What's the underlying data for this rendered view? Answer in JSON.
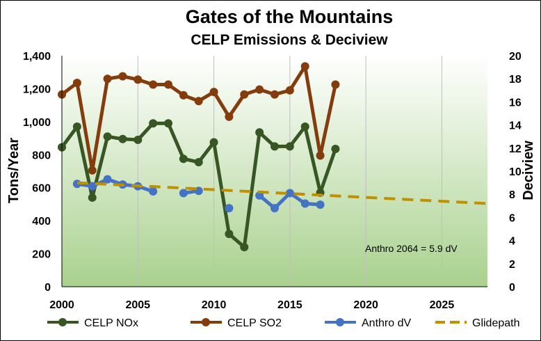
{
  "chart_data": {
    "type": "line",
    "title": "Gates of the Mountains",
    "subtitle": "CELP Emissions & Deciview",
    "ylabel": "Tons/Year",
    "y2label": "Deciview",
    "xlim": [
      2000,
      2028
    ],
    "ylim": [
      0,
      1400
    ],
    "y2lim": [
      0,
      20
    ],
    "xticks": [
      "2000",
      "2005",
      "2010",
      "2015",
      "2020",
      "2025"
    ],
    "yticks": [
      "0",
      "200",
      "400",
      "600",
      "800",
      "1,000",
      "1,200",
      "1,400"
    ],
    "y2ticks": [
      "0",
      "2",
      "4",
      "6",
      "8",
      "10",
      "12",
      "14",
      "16",
      "18",
      "20"
    ],
    "grid": "vertical",
    "legend_position": "bottom",
    "annotation": "Anthro 2064 = 5.9 dV",
    "series": [
      {
        "name": "CELP NOx",
        "axis": "left",
        "color": "#375623",
        "style": "line-marker",
        "x": [
          2000,
          2001,
          2002,
          2003,
          2004,
          2005,
          2006,
          2007,
          2008,
          2009,
          2010,
          2011,
          2012,
          2013,
          2014,
          2015,
          2016,
          2017,
          2018
        ],
        "y": [
          845,
          970,
          540,
          910,
          895,
          890,
          990,
          990,
          775,
          755,
          875,
          320,
          240,
          935,
          850,
          850,
          970,
          570,
          835
        ]
      },
      {
        "name": "CELP SO2",
        "axis": "left",
        "color": "#843C0C",
        "style": "line-marker",
        "x": [
          2000,
          2001,
          2002,
          2003,
          2004,
          2005,
          2006,
          2007,
          2008,
          2009,
          2010,
          2011,
          2012,
          2013,
          2014,
          2015,
          2016,
          2017,
          2018
        ],
        "y": [
          1165,
          1235,
          705,
          1260,
          1275,
          1255,
          1225,
          1225,
          1160,
          1125,
          1180,
          1030,
          1165,
          1195,
          1165,
          1190,
          1335,
          795,
          1225
        ]
      },
      {
        "name": "Anthro dV",
        "axis": "right",
        "color": "#4472C4",
        "style": "line-marker",
        "segments": [
          {
            "x": [
              2001,
              2002,
              2003,
              2004,
              2005,
              2006
            ],
            "y": [
              8.9,
              8.7,
              9.3,
              8.85,
              8.7,
              8.25
            ]
          },
          {
            "x": [
              2008,
              2009
            ],
            "y": [
              8.1,
              8.3
            ]
          },
          {
            "x": [
              2011
            ],
            "y": [
              6.8
            ]
          },
          {
            "x": [
              2013,
              2014,
              2015,
              2016,
              2017
            ],
            "y": [
              7.9,
              6.8,
              8.1,
              7.2,
              7.1
            ]
          }
        ]
      },
      {
        "name": "Glidepath",
        "axis": "right",
        "color": "#BF9000",
        "style": "dashed",
        "x": [
          2001,
          2028
        ],
        "y": [
          9.0,
          7.2
        ]
      }
    ]
  }
}
